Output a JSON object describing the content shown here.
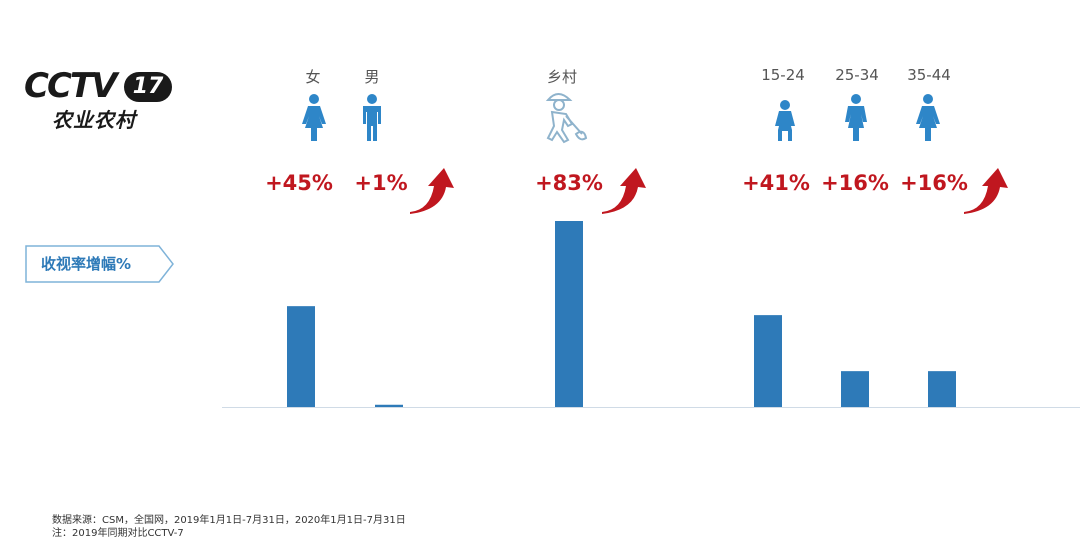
{
  "logo": {
    "cctv": "CCTV",
    "channel": "17",
    "subtitle": "农业农村"
  },
  "metric_label": "收视率增幅%",
  "colors": {
    "bar": "#2e7ab8",
    "accent": "#c0171f",
    "icon": "#2e86c8"
  },
  "chart_data": {
    "type": "bar",
    "categories": [
      "女",
      "男",
      "乡村",
      "15-24",
      "25-34",
      "35-44"
    ],
    "values": [
      45,
      1,
      83,
      41,
      16,
      16
    ],
    "data_labels": [
      "+45%",
      "+1%",
      "+83%",
      "+41%",
      "+16%",
      "+16%"
    ],
    "title": "",
    "xlabel": "",
    "ylabel": "收视率增幅%",
    "ylim": [
      0,
      83
    ],
    "grid": false,
    "legend": "none"
  },
  "source": {
    "line1": "数据来源：CSM，全国网，2019年1月1日-7月31日，2020年1月1日-7月31日",
    "line2": "注：2019年同期对比CCTV-7"
  }
}
